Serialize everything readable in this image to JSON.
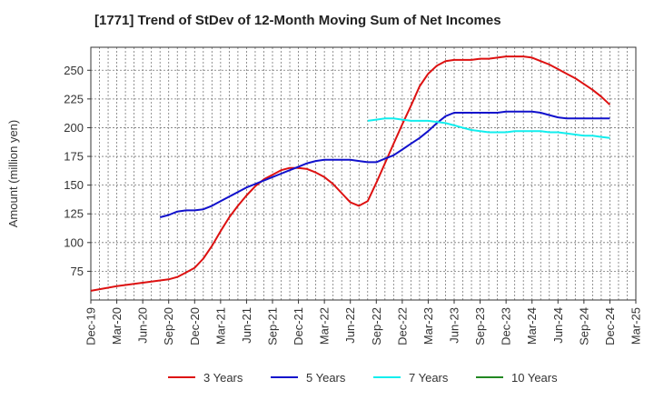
{
  "chart_data": {
    "type": "line",
    "title": "[1771]  Trend of StDev of 12-Month Moving Sum of Net Incomes",
    "ylabel": "Amount (million yen)",
    "xlabel": "",
    "ylim": [
      50,
      270
    ],
    "yticks": [
      75,
      100,
      125,
      150,
      175,
      200,
      225,
      250
    ],
    "x_range": [
      "2019-12",
      "2025-03"
    ],
    "x_ticks": [
      "Dec-19",
      "Mar-20",
      "Jun-20",
      "Sep-20",
      "Dec-20",
      "Mar-21",
      "Jun-21",
      "Sep-21",
      "Dec-21",
      "Mar-22",
      "Jun-22",
      "Sep-22",
      "Dec-22",
      "Mar-23",
      "Jun-23",
      "Sep-23",
      "Dec-23",
      "Mar-24",
      "Jun-24",
      "Sep-24",
      "Dec-24",
      "Mar-25"
    ],
    "grid": true,
    "legend_position": "bottom",
    "series": [
      {
        "name": "3 Years",
        "color": "#dd1111",
        "points": [
          [
            "2019-12",
            58
          ],
          [
            "2020-03",
            62
          ],
          [
            "2020-06",
            65
          ],
          [
            "2020-09",
            68
          ],
          [
            "2020-10",
            70
          ],
          [
            "2020-11",
            74
          ],
          [
            "2020-12",
            78
          ],
          [
            "2021-01",
            86
          ],
          [
            "2021-02",
            97
          ],
          [
            "2021-03",
            110
          ],
          [
            "2021-04",
            122
          ],
          [
            "2021-05",
            132
          ],
          [
            "2021-06",
            141
          ],
          [
            "2021-07",
            149
          ],
          [
            "2021-08",
            155
          ],
          [
            "2021-09",
            159
          ],
          [
            "2021-10",
            163
          ],
          [
            "2021-11",
            165
          ],
          [
            "2021-12",
            165
          ],
          [
            "2022-01",
            164
          ],
          [
            "2022-02",
            161
          ],
          [
            "2022-03",
            157
          ],
          [
            "2022-04",
            151
          ],
          [
            "2022-05",
            143
          ],
          [
            "2022-06",
            135
          ],
          [
            "2022-07",
            132
          ],
          [
            "2022-08",
            136
          ],
          [
            "2022-09",
            152
          ],
          [
            "2022-10",
            169
          ],
          [
            "2022-11",
            186
          ],
          [
            "2022-12",
            203
          ],
          [
            "2023-01",
            219
          ],
          [
            "2023-02",
            236
          ],
          [
            "2023-03",
            247
          ],
          [
            "2023-04",
            254
          ],
          [
            "2023-05",
            258
          ],
          [
            "2023-06",
            259
          ],
          [
            "2023-07",
            259
          ],
          [
            "2023-08",
            259
          ],
          [
            "2023-09",
            260
          ],
          [
            "2023-10",
            260
          ],
          [
            "2023-11",
            261
          ],
          [
            "2023-12",
            262
          ],
          [
            "2024-01",
            262
          ],
          [
            "2024-02",
            262
          ],
          [
            "2024-03",
            261
          ],
          [
            "2024-04",
            258
          ],
          [
            "2024-05",
            255
          ],
          [
            "2024-06",
            251
          ],
          [
            "2024-07",
            247
          ],
          [
            "2024-08",
            243
          ],
          [
            "2024-09",
            238
          ],
          [
            "2024-10",
            233
          ],
          [
            "2024-11",
            227
          ],
          [
            "2024-12",
            220
          ]
        ]
      },
      {
        "name": "5 Years",
        "color": "#1111cc",
        "points": [
          [
            "2020-08",
            122
          ],
          [
            "2020-09",
            124
          ],
          [
            "2020-10",
            127
          ],
          [
            "2020-11",
            128
          ],
          [
            "2020-12",
            128
          ],
          [
            "2021-01",
            129
          ],
          [
            "2021-02",
            132
          ],
          [
            "2021-03",
            136
          ],
          [
            "2021-04",
            140
          ],
          [
            "2021-05",
            144
          ],
          [
            "2021-06",
            148
          ],
          [
            "2021-07",
            151
          ],
          [
            "2021-08",
            154
          ],
          [
            "2021-09",
            157
          ],
          [
            "2021-10",
            160
          ],
          [
            "2021-11",
            163
          ],
          [
            "2021-12",
            166
          ],
          [
            "2022-01",
            169
          ],
          [
            "2022-02",
            171
          ],
          [
            "2022-03",
            172
          ],
          [
            "2022-04",
            172
          ],
          [
            "2022-05",
            172
          ],
          [
            "2022-06",
            172
          ],
          [
            "2022-07",
            171
          ],
          [
            "2022-08",
            170
          ],
          [
            "2022-09",
            170
          ],
          [
            "2022-10",
            173
          ],
          [
            "2022-11",
            176
          ],
          [
            "2022-12",
            181
          ],
          [
            "2023-01",
            186
          ],
          [
            "2023-02",
            191
          ],
          [
            "2023-03",
            197
          ],
          [
            "2023-04",
            204
          ],
          [
            "2023-05",
            210
          ],
          [
            "2023-06",
            213
          ],
          [
            "2023-07",
            213
          ],
          [
            "2023-08",
            213
          ],
          [
            "2023-09",
            213
          ],
          [
            "2023-10",
            213
          ],
          [
            "2023-11",
            213
          ],
          [
            "2023-12",
            214
          ],
          [
            "2024-01",
            214
          ],
          [
            "2024-02",
            214
          ],
          [
            "2024-03",
            214
          ],
          [
            "2024-04",
            213
          ],
          [
            "2024-05",
            211
          ],
          [
            "2024-06",
            209
          ],
          [
            "2024-07",
            208
          ],
          [
            "2024-08",
            208
          ],
          [
            "2024-09",
            208
          ],
          [
            "2024-10",
            208
          ],
          [
            "2024-11",
            208
          ],
          [
            "2024-12",
            208
          ]
        ]
      },
      {
        "name": "7 Years",
        "color": "#11eeee",
        "points": [
          [
            "2022-08",
            206
          ],
          [
            "2022-09",
            207
          ],
          [
            "2022-10",
            208
          ],
          [
            "2022-11",
            208
          ],
          [
            "2022-12",
            207
          ],
          [
            "2023-01",
            206
          ],
          [
            "2023-02",
            206
          ],
          [
            "2023-03",
            206
          ],
          [
            "2023-04",
            205
          ],
          [
            "2023-05",
            204
          ],
          [
            "2023-06",
            202
          ],
          [
            "2023-07",
            200
          ],
          [
            "2023-08",
            198
          ],
          [
            "2023-09",
            197
          ],
          [
            "2023-10",
            196
          ],
          [
            "2023-11",
            196
          ],
          [
            "2023-12",
            196
          ],
          [
            "2024-01",
            197
          ],
          [
            "2024-02",
            197
          ],
          [
            "2024-03",
            197
          ],
          [
            "2024-04",
            197
          ],
          [
            "2024-05",
            196
          ],
          [
            "2024-06",
            196
          ],
          [
            "2024-07",
            195
          ],
          [
            "2024-08",
            194
          ],
          [
            "2024-09",
            193
          ],
          [
            "2024-10",
            193
          ],
          [
            "2024-11",
            192
          ],
          [
            "2024-12",
            191
          ]
        ]
      },
      {
        "name": "10 Years",
        "color": "#228822",
        "points": []
      }
    ]
  }
}
